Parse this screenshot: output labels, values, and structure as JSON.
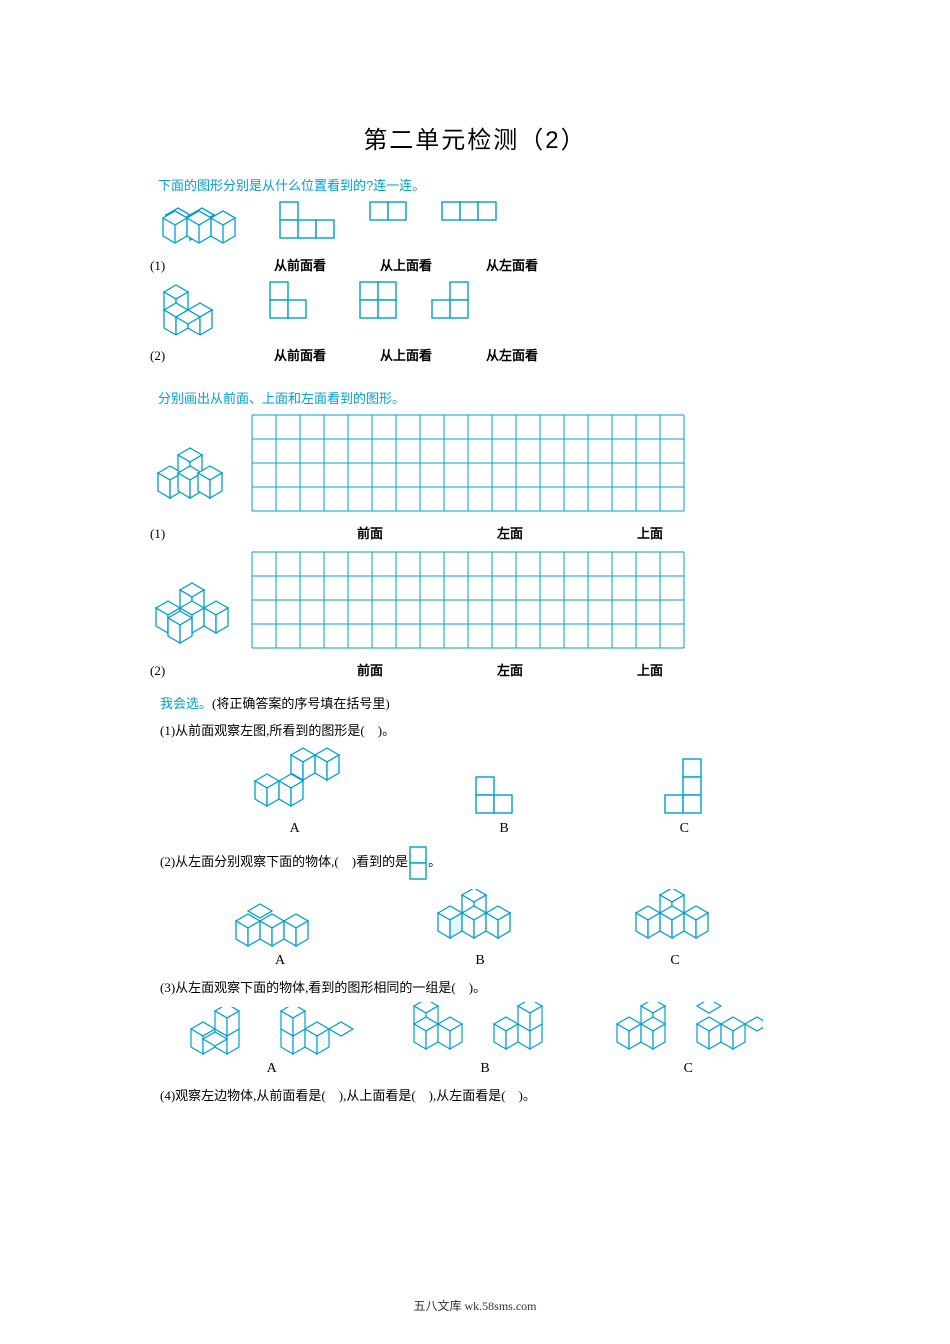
{
  "title": "第二单元检测（2）",
  "colors": {
    "accent": "#00a0d0",
    "text": "#000000",
    "bg": "#ffffff"
  },
  "section1": {
    "heading": "下面的图形分别是从什么位置看到的?连一连。",
    "rows": [
      {
        "idx": "(1)",
        "labels": [
          "从前面看",
          "从上面看",
          "从左面看"
        ]
      },
      {
        "idx": "(2)",
        "labels": [
          "从前面看",
          "从上面看",
          "从左面看"
        ]
      }
    ]
  },
  "section2": {
    "heading": "分别画出从前面、上面和左面看到的图形。",
    "grid": {
      "cols": 18,
      "rows": 4,
      "cell": 24
    },
    "rows": [
      {
        "idx": "(1)",
        "labels": [
          "前面",
          "左面",
          "上面"
        ]
      },
      {
        "idx": "(2)",
        "labels": [
          "前面",
          "左面",
          "上面"
        ]
      }
    ]
  },
  "section3": {
    "heading": "我会选。",
    "heading_suffix": "(将正确答案的序号填在括号里)",
    "q1": {
      "text": "(1)从前面观察左图,所看到的图形是(　)。",
      "options": [
        "A",
        "B",
        "C"
      ]
    },
    "q2": {
      "text_prefix": "(2)从左面分别观察下面的物体,(　)看到的是",
      "text_suffix": "。",
      "options": [
        "A",
        "B",
        "C"
      ]
    },
    "q3": {
      "text": "(3)从左面观察下面的物体,看到的图形相同的一组是(　)。",
      "options": [
        "A",
        "B",
        "C"
      ]
    },
    "q4": {
      "text": "(4)观察左边物体,从前面看是(　),从上面看是(　),从左面看是(　)。"
    }
  },
  "footer": "五八文库 wk.58sms.com"
}
